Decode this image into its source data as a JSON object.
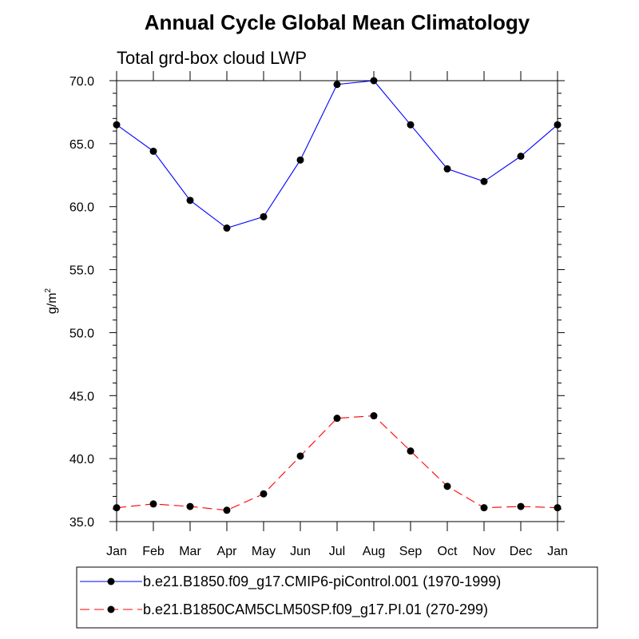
{
  "chart_data": {
    "type": "line",
    "title": "Annual Cycle Global Mean Climatology",
    "subtitle": "Total grd-box cloud LWP",
    "ylabel_base": "g/m",
    "ylabel_exp": "2",
    "xlabel": "",
    "ylim": [
      35.0,
      70.0
    ],
    "yticks": [
      "35.0",
      "40.0",
      "45.0",
      "50.0",
      "55.0",
      "60.0",
      "65.0",
      "70.0"
    ],
    "ytick_values": [
      35,
      40,
      45,
      50,
      55,
      60,
      65,
      70
    ],
    "categories": [
      "Jan",
      "Feb",
      "Mar",
      "Apr",
      "May",
      "Jun",
      "Jul",
      "Aug",
      "Sep",
      "Oct",
      "Nov",
      "Dec",
      "Jan"
    ],
    "legend_position": "bottom",
    "series": [
      {
        "name": "b.e21.B1850.f09_g17.CMIP6-piControl.001 (1970-1999)",
        "color": "#0000ff",
        "dash": "solid",
        "values": [
          66.5,
          64.4,
          60.5,
          58.3,
          59.2,
          63.7,
          69.7,
          70.0,
          66.5,
          63.0,
          62.0,
          64.0,
          66.5
        ]
      },
      {
        "name": "b.e21.B1850CAM5CLM50SP.f09_g17.PI.01 (270-299)",
        "color": "#ff0000",
        "dash": "dashed",
        "values": [
          36.1,
          36.4,
          36.2,
          35.9,
          37.2,
          40.2,
          43.2,
          43.4,
          40.6,
          37.8,
          36.1,
          36.2,
          36.1
        ]
      }
    ]
  }
}
